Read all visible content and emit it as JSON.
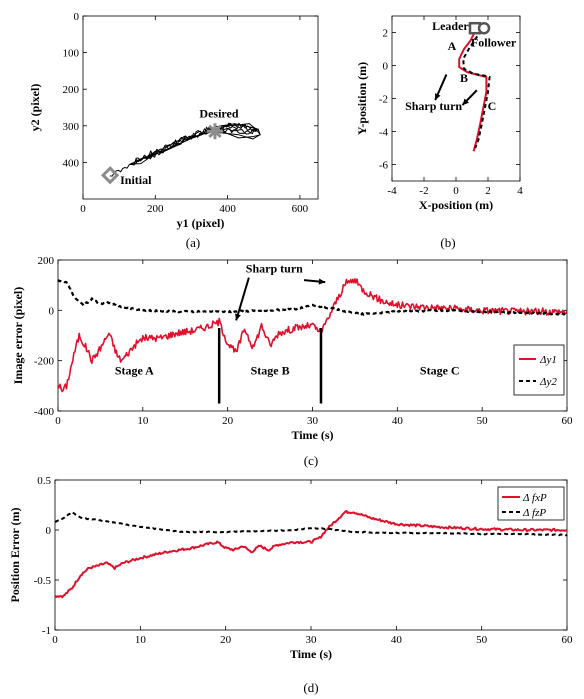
{
  "figure": {
    "captions": [
      "(a)",
      "(b)",
      "(c)",
      "(d)"
    ]
  },
  "colors": {
    "red": "#e0102a",
    "black": "#000000",
    "marker_gray": "#8c8c8c"
  },
  "chart_data": [
    {
      "id": "a",
      "type": "line",
      "xlabel": "y1 (pixel)",
      "ylabel": "y2 (pixel)",
      "xlim": [
        0,
        650
      ],
      "ylim": [
        500,
        0
      ],
      "y_reversed": true,
      "xticks": [
        0,
        200,
        400,
        600
      ],
      "yticks": [
        0,
        100,
        200,
        300,
        400
      ],
      "grid": false,
      "annotations": [
        {
          "text": "Desired",
          "x": 365,
          "y": 315
        },
        {
          "text": "Initial",
          "x": 75,
          "y": 435
        }
      ],
      "markers": {
        "desired": [
          365,
          315
        ],
        "initial": [
          75,
          435
        ]
      },
      "series": [
        {
          "color": "#000000",
          "points": [
            [
              75,
              435
            ],
            [
              110,
              420
            ],
            [
              140,
              400
            ],
            [
              180,
              385
            ],
            [
              210,
              372
            ],
            [
              240,
              360
            ],
            [
              265,
              345
            ],
            [
              300,
              330
            ],
            [
              340,
              318
            ],
            [
              380,
              305
            ],
            [
              420,
              300
            ],
            [
              460,
              305
            ],
            [
              490,
              320
            ],
            [
              470,
              335
            ],
            [
              430,
              330
            ],
            [
              390,
              325
            ],
            [
              350,
              318
            ],
            [
              320,
              322
            ],
            [
              290,
              338
            ],
            [
              260,
              352
            ],
            [
              220,
              370
            ],
            [
              190,
              380
            ],
            [
              160,
              395
            ],
            [
              130,
              405
            ],
            [
              170,
              385
            ],
            [
              210,
              365
            ],
            [
              250,
              348
            ],
            [
              290,
              330
            ],
            [
              330,
              315
            ],
            [
              360,
              308
            ],
            [
              400,
              312
            ],
            [
              440,
              318
            ],
            [
              480,
              312
            ],
            [
              460,
              298
            ],
            [
              420,
              295
            ],
            [
              380,
              300
            ],
            [
              365,
              315
            ]
          ]
        }
      ]
    },
    {
      "id": "b",
      "type": "line",
      "xlabel": "X-position  (m)",
      "ylabel": "Y-position (m)",
      "xlim": [
        -4,
        4
      ],
      "ylim": [
        -7,
        3
      ],
      "xticks": [
        -4,
        -2,
        0,
        2,
        4
      ],
      "yticks": [
        2,
        0,
        -2,
        -4,
        -6
      ],
      "grid": false,
      "annotations": [
        {
          "text": "Leader",
          "x": -0.35,
          "y": 2.15
        },
        {
          "text": "Follower",
          "x": 2.35,
          "y": 1.15
        },
        {
          "text": "A",
          "x": -0.25,
          "y": 0.95
        },
        {
          "text": "B",
          "x": 0.5,
          "y": -1.0
        },
        {
          "text": "C",
          "x": 2.25,
          "y": -2.7
        },
        {
          "text": "Sharp turn",
          "x": -1.4,
          "y": -2.7
        }
      ],
      "series": [
        {
          "name": "Leader",
          "color": "#e0102a",
          "style": "solid",
          "points": [
            [
              1.2,
              2.1
            ],
            [
              0.9,
              1.5
            ],
            [
              0.5,
              1.0
            ],
            [
              0.2,
              0.4
            ],
            [
              0.2,
              -0.1
            ],
            [
              0.7,
              -0.4
            ],
            [
              1.3,
              -0.55
            ],
            [
              1.9,
              -0.7
            ],
            [
              1.9,
              -1.6
            ],
            [
              1.7,
              -2.6
            ],
            [
              1.5,
              -3.6
            ],
            [
              1.3,
              -4.5
            ],
            [
              1.1,
              -5.2
            ]
          ]
        },
        {
          "name": "Follower",
          "color": "#000000",
          "style": "dashed",
          "points": [
            [
              1.6,
              2.1
            ],
            [
              1.2,
              1.6
            ],
            [
              0.8,
              1.0
            ],
            [
              0.45,
              0.4
            ],
            [
              0.5,
              -0.2
            ],
            [
              1.1,
              -0.5
            ],
            [
              1.7,
              -0.6
            ],
            [
              2.1,
              -0.7
            ],
            [
              2.0,
              -1.6
            ],
            [
              1.8,
              -2.6
            ],
            [
              1.6,
              -3.6
            ],
            [
              1.4,
              -4.5
            ],
            [
              1.2,
              -5.0
            ]
          ]
        }
      ]
    },
    {
      "id": "c",
      "type": "line",
      "xlabel": "Time (s)",
      "ylabel": "Image error (pixel)",
      "xlim": [
        0,
        60
      ],
      "ylim": [
        -400,
        200
      ],
      "xticks": [
        0,
        10,
        20,
        30,
        40,
        50,
        60
      ],
      "yticks": [
        200,
        0,
        -200,
        -400
      ],
      "grid": false,
      "legend": "right",
      "stage_boundaries": [
        19,
        31
      ],
      "annotations": [
        {
          "text": "Stage A",
          "x": 9,
          "y": -255
        },
        {
          "text": "Stage B",
          "x": 25,
          "y": -255
        },
        {
          "text": "Stage C",
          "x": 45,
          "y": -255
        },
        {
          "text": "Sharp turn",
          "x": 25.5,
          "y": 150
        }
      ],
      "series": [
        {
          "name": "Δy1",
          "color": "#e0102a",
          "style": "solid",
          "noise": 14,
          "points": [
            [
              0,
              -290
            ],
            [
              0.5,
              -320
            ],
            [
              1,
              -300
            ],
            [
              2,
              -160
            ],
            [
              2.5,
              -100
            ],
            [
              3.5,
              -160
            ],
            [
              4,
              -200
            ],
            [
              5,
              -150
            ],
            [
              6,
              -90
            ],
            [
              7,
              -180
            ],
            [
              7.5,
              -200
            ],
            [
              9,
              -140
            ],
            [
              10,
              -110
            ],
            [
              12,
              -110
            ],
            [
              14,
              -90
            ],
            [
              16,
              -80
            ],
            [
              18,
              -60
            ],
            [
              19,
              -45
            ],
            [
              20,
              -130
            ],
            [
              21,
              -170
            ],
            [
              22,
              -70
            ],
            [
              23,
              -150
            ],
            [
              24,
              -60
            ],
            [
              25,
              -140
            ],
            [
              26,
              -90
            ],
            [
              28,
              -70
            ],
            [
              30,
              -60
            ],
            [
              31,
              -90
            ],
            [
              32,
              -20
            ],
            [
              33,
              50
            ],
            [
              34,
              110
            ],
            [
              35,
              120
            ],
            [
              36,
              80
            ],
            [
              38,
              40
            ],
            [
              40,
              20
            ],
            [
              45,
              10
            ],
            [
              50,
              0
            ],
            [
              55,
              -5
            ],
            [
              60,
              -5
            ]
          ]
        },
        {
          "name": "Δy2",
          "color": "#000000",
          "style": "dashed",
          "noise": 3,
          "points": [
            [
              0,
              120
            ],
            [
              1,
              110
            ],
            [
              2,
              50
            ],
            [
              3,
              20
            ],
            [
              4,
              45
            ],
            [
              5,
              25
            ],
            [
              6,
              30
            ],
            [
              8,
              10
            ],
            [
              10,
              0
            ],
            [
              14,
              -5
            ],
            [
              18,
              -5
            ],
            [
              20,
              -5
            ],
            [
              25,
              0
            ],
            [
              28,
              5
            ],
            [
              30,
              20
            ],
            [
              32,
              10
            ],
            [
              34,
              -5
            ],
            [
              36,
              -15
            ],
            [
              38,
              -10
            ],
            [
              40,
              -5
            ],
            [
              45,
              0
            ],
            [
              50,
              -5
            ],
            [
              55,
              -10
            ],
            [
              60,
              -15
            ]
          ]
        }
      ]
    },
    {
      "id": "d",
      "type": "line",
      "xlabel": "Time (s)",
      "ylabel": "Position Error (m)",
      "xlim": [
        0,
        60
      ],
      "ylim": [
        -1,
        0.5
      ],
      "xticks": [
        0,
        10,
        20,
        30,
        40,
        50,
        60
      ],
      "yticks": [
        0.5,
        0,
        -0.5,
        -1
      ],
      "grid": false,
      "legend": "top-right",
      "series": [
        {
          "name": "Δ fxP",
          "color": "#e0102a",
          "style": "solid",
          "noise": 0.012,
          "points": [
            [
              0,
              -0.66
            ],
            [
              1,
              -0.66
            ],
            [
              2,
              -0.58
            ],
            [
              3,
              -0.45
            ],
            [
              4,
              -0.38
            ],
            [
              5,
              -0.36
            ],
            [
              6,
              -0.33
            ],
            [
              7,
              -0.38
            ],
            [
              8,
              -0.33
            ],
            [
              10,
              -0.28
            ],
            [
              13,
              -0.22
            ],
            [
              16,
              -0.18
            ],
            [
              19,
              -0.12
            ],
            [
              20,
              -0.18
            ],
            [
              21,
              -0.2
            ],
            [
              22,
              -0.16
            ],
            [
              23,
              -0.22
            ],
            [
              24,
              -0.16
            ],
            [
              25,
              -0.2
            ],
            [
              26,
              -0.15
            ],
            [
              28,
              -0.12
            ],
            [
              30,
              -0.12
            ],
            [
              31,
              -0.08
            ],
            [
              32,
              0.02
            ],
            [
              33,
              0.1
            ],
            [
              34,
              0.18
            ],
            [
              35,
              0.18
            ],
            [
              37,
              0.12
            ],
            [
              40,
              0.06
            ],
            [
              45,
              0.03
            ],
            [
              50,
              0.01
            ],
            [
              55,
              0.0
            ],
            [
              60,
              0.0
            ]
          ]
        },
        {
          "name": "Δ fzP",
          "color": "#000000",
          "style": "dashed",
          "noise": 0.004,
          "points": [
            [
              0,
              0.08
            ],
            [
              1,
              0.12
            ],
            [
              2,
              0.18
            ],
            [
              3,
              0.12
            ],
            [
              5,
              0.1
            ],
            [
              8,
              0.06
            ],
            [
              10,
              0.03
            ],
            [
              15,
              -0.02
            ],
            [
              20,
              -0.02
            ],
            [
              25,
              -0.01
            ],
            [
              28,
              0.0
            ],
            [
              30,
              0.02
            ],
            [
              32,
              0.01
            ],
            [
              35,
              -0.02
            ],
            [
              40,
              -0.03
            ],
            [
              45,
              -0.03
            ],
            [
              50,
              -0.04
            ],
            [
              55,
              -0.04
            ],
            [
              60,
              -0.05
            ]
          ]
        }
      ]
    }
  ]
}
